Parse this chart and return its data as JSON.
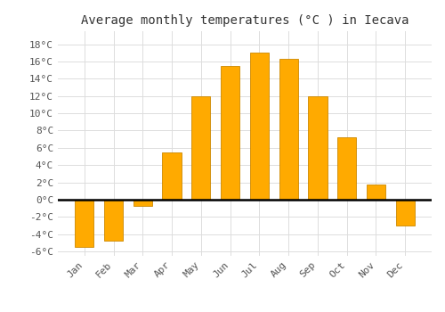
{
  "title": "Average monthly temperatures (°C ) in Iecava",
  "months": [
    "Jan",
    "Feb",
    "Mar",
    "Apr",
    "May",
    "Jun",
    "Jul",
    "Aug",
    "Sep",
    "Oct",
    "Nov",
    "Dec"
  ],
  "values": [
    -5.5,
    -4.7,
    -0.7,
    5.5,
    12.0,
    15.5,
    17.0,
    16.3,
    12.0,
    7.2,
    1.8,
    -3.0
  ],
  "bar_color": "#FFAA00",
  "bar_edge_color": "#CC8800",
  "ylim_min": -6.5,
  "ylim_max": 19.5,
  "yticks": [
    -6,
    -4,
    -2,
    0,
    2,
    4,
    6,
    8,
    10,
    12,
    14,
    16,
    18
  ],
  "ytick_labels": [
    "-6°C",
    "-4°C",
    "-2°C",
    "0°C",
    "2°C",
    "4°C",
    "6°C",
    "8°C",
    "10°C",
    "12°C",
    "14°C",
    "16°C",
    "18°C"
  ],
  "background_color": "#ffffff",
  "grid_color": "#dddddd",
  "title_fontsize": 10,
  "tick_fontsize": 8
}
